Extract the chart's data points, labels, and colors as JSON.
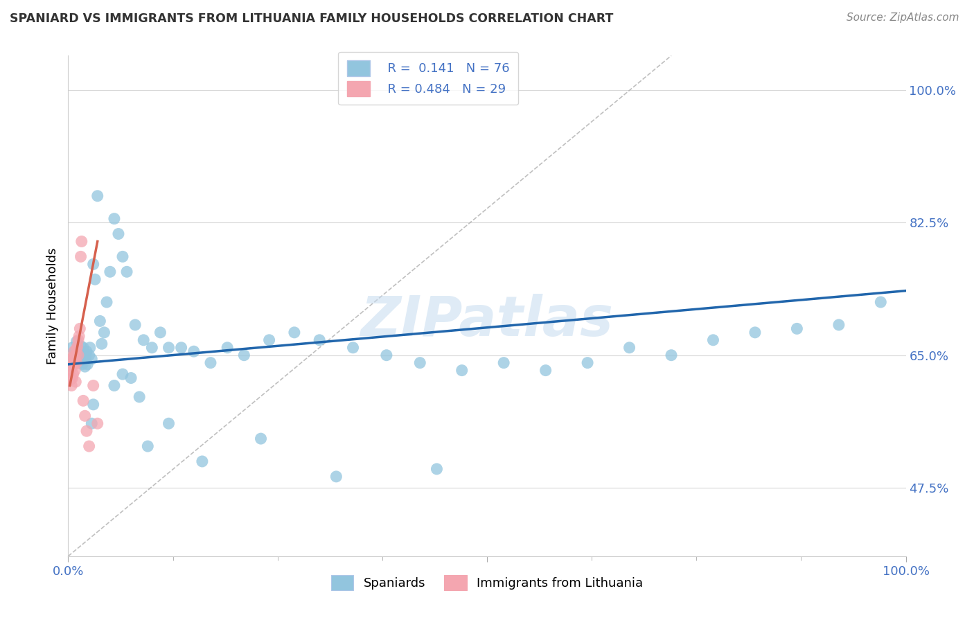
{
  "title": "SPANIARD VS IMMIGRANTS FROM LITHUANIA FAMILY HOUSEHOLDS CORRELATION CHART",
  "source_text": "Source: ZipAtlas.com",
  "ylabel": "Family Households",
  "xlim": [
    0.0,
    1.0
  ],
  "ylim": [
    0.385,
    1.045
  ],
  "yticks": [
    0.475,
    0.65,
    0.825,
    1.0
  ],
  "ytick_labels": [
    "47.5%",
    "65.0%",
    "82.5%",
    "100.0%"
  ],
  "legend_r1": "R =  0.141",
  "legend_n1": "N = 76",
  "legend_r2": "R = 0.484",
  "legend_n2": "N = 29",
  "blue_color": "#92c5de",
  "pink_color": "#f4a6b0",
  "trend_blue": "#2166ac",
  "trend_pink": "#d6604d",
  "watermark": "ZIPatlas",
  "watermark_color": "#c6dbef",
  "grid_color": "#c8c8c8",
  "spaniards_x": [
    0.005,
    0.007,
    0.008,
    0.009,
    0.01,
    0.01,
    0.011,
    0.012,
    0.012,
    0.013,
    0.014,
    0.015,
    0.015,
    0.016,
    0.017,
    0.018,
    0.018,
    0.019,
    0.02,
    0.021,
    0.022,
    0.023,
    0.025,
    0.026,
    0.028,
    0.03,
    0.032,
    0.035,
    0.038,
    0.04,
    0.043,
    0.046,
    0.05,
    0.055,
    0.06,
    0.065,
    0.07,
    0.08,
    0.09,
    0.1,
    0.11,
    0.12,
    0.135,
    0.15,
    0.17,
    0.19,
    0.21,
    0.24,
    0.27,
    0.3,
    0.34,
    0.38,
    0.42,
    0.47,
    0.52,
    0.57,
    0.62,
    0.67,
    0.72,
    0.77,
    0.82,
    0.87,
    0.92,
    0.97,
    0.028,
    0.03,
    0.055,
    0.065,
    0.075,
    0.085,
    0.095,
    0.12,
    0.16,
    0.23,
    0.32,
    0.44
  ],
  "spaniards_y": [
    0.66,
    0.645,
    0.655,
    0.65,
    0.64,
    0.668,
    0.65,
    0.642,
    0.658,
    0.648,
    0.655,
    0.64,
    0.662,
    0.65,
    0.638,
    0.645,
    0.66,
    0.642,
    0.635,
    0.648,
    0.655,
    0.638,
    0.65,
    0.66,
    0.645,
    0.77,
    0.75,
    0.86,
    0.695,
    0.665,
    0.68,
    0.72,
    0.76,
    0.83,
    0.81,
    0.78,
    0.76,
    0.69,
    0.67,
    0.66,
    0.68,
    0.66,
    0.66,
    0.655,
    0.64,
    0.66,
    0.65,
    0.67,
    0.68,
    0.67,
    0.66,
    0.65,
    0.64,
    0.63,
    0.64,
    0.63,
    0.64,
    0.66,
    0.65,
    0.67,
    0.68,
    0.685,
    0.69,
    0.72,
    0.56,
    0.585,
    0.61,
    0.625,
    0.62,
    0.595,
    0.53,
    0.56,
    0.51,
    0.54,
    0.49,
    0.5
  ],
  "lithuania_x": [
    0.002,
    0.003,
    0.004,
    0.004,
    0.005,
    0.005,
    0.006,
    0.006,
    0.007,
    0.007,
    0.008,
    0.008,
    0.009,
    0.009,
    0.01,
    0.01,
    0.011,
    0.012,
    0.012,
    0.013,
    0.014,
    0.015,
    0.016,
    0.018,
    0.02,
    0.022,
    0.025,
    0.03,
    0.035
  ],
  "lithuania_y": [
    0.63,
    0.618,
    0.645,
    0.61,
    0.635,
    0.62,
    0.648,
    0.625,
    0.638,
    0.655,
    0.645,
    0.63,
    0.65,
    0.615,
    0.658,
    0.64,
    0.662,
    0.67,
    0.65,
    0.675,
    0.685,
    0.78,
    0.8,
    0.59,
    0.57,
    0.55,
    0.53,
    0.61,
    0.56
  ],
  "blue_trend_x": [
    0.0,
    1.0
  ],
  "blue_trend_y": [
    0.638,
    0.735
  ],
  "pink_trend_x": [
    0.002,
    0.035
  ],
  "pink_trend_y": [
    0.61,
    0.8
  ]
}
